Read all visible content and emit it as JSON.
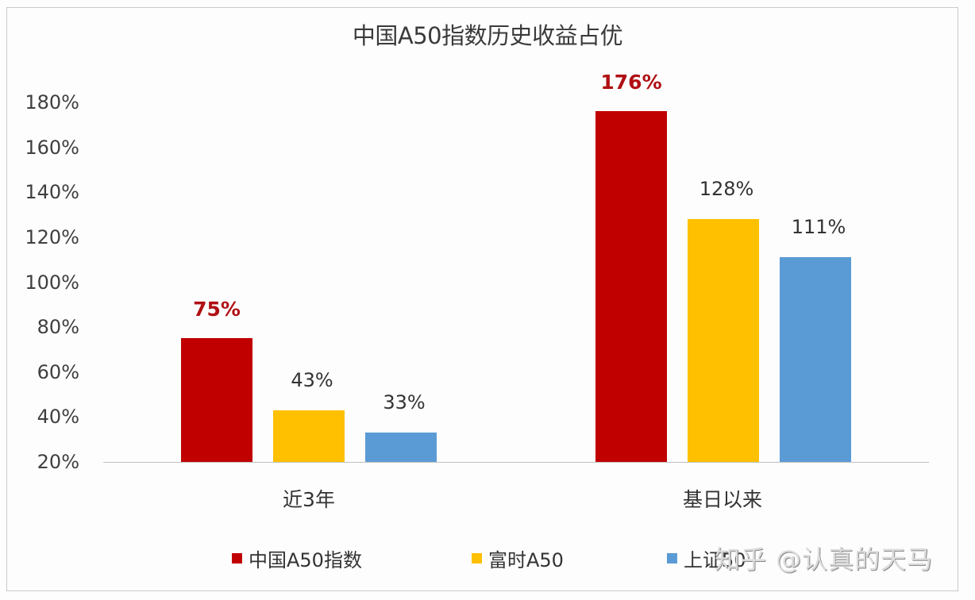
{
  "chart_data": {
    "type": "bar",
    "title": "中国A50指数历史收益占优",
    "xlabel": "",
    "ylabel": "",
    "ylim": [
      20,
      180
    ],
    "yticks": [
      "180%",
      "160%",
      "140%",
      "120%",
      "100%",
      "80%",
      "60%",
      "40%",
      "20%"
    ],
    "categories": [
      "近3年",
      "基日以来"
    ],
    "series": [
      {
        "name": "中国A50指数",
        "color": "#c00000",
        "values": [
          75,
          176
        ],
        "labels": [
          "75%",
          "176%"
        ],
        "highlight": true
      },
      {
        "name": "富时A50",
        "color": "#ffc000",
        "values": [
          43,
          128
        ],
        "labels": [
          "43%",
          "128%"
        ],
        "highlight": false
      },
      {
        "name": "上证50",
        "color": "#5b9bd5",
        "values": [
          33,
          111
        ],
        "labels": [
          "33%",
          "111%"
        ],
        "highlight": false
      }
    ],
    "grid": false,
    "legend_position": "bottom"
  },
  "watermark": "知乎 @认真的天马"
}
